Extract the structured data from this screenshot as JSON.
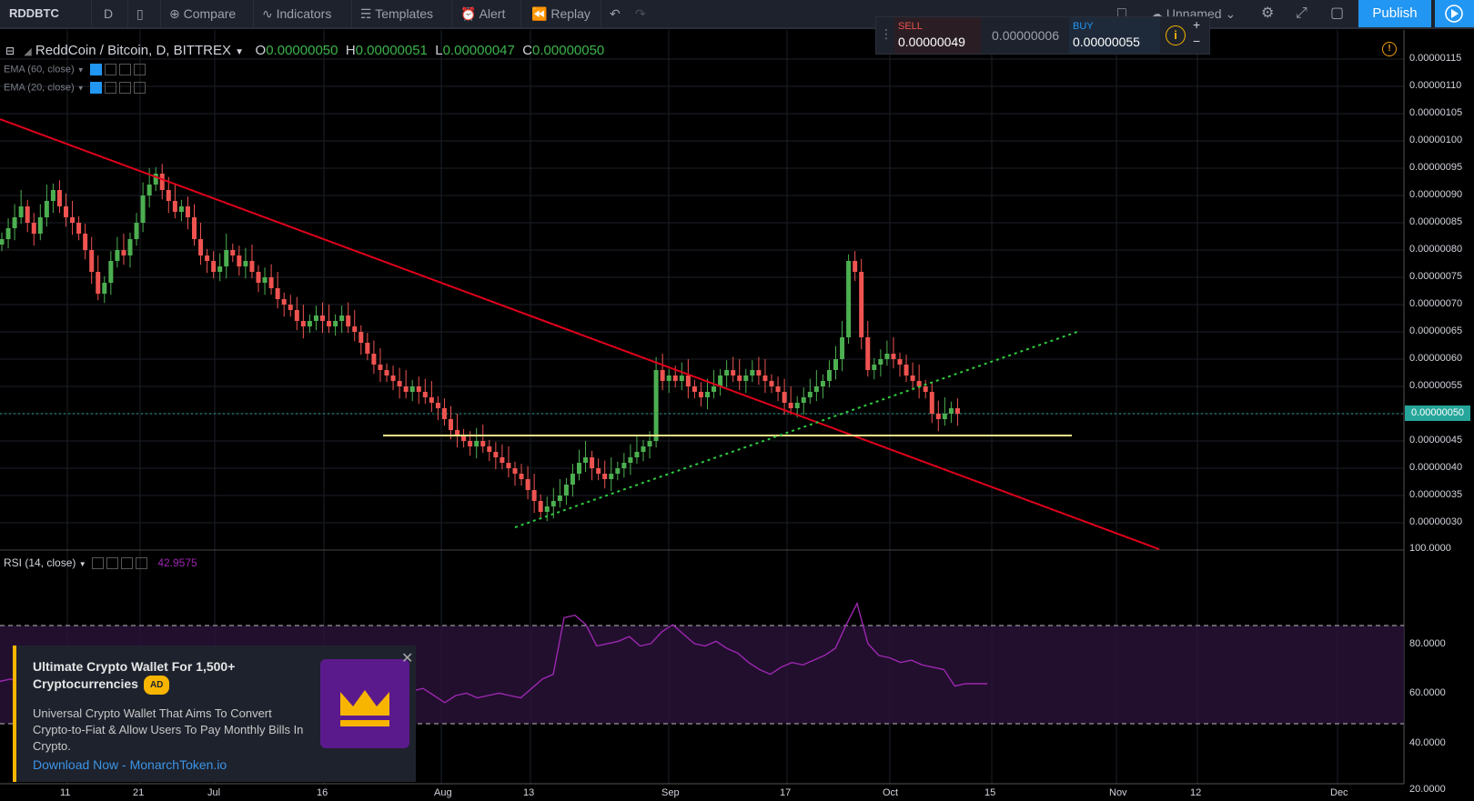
{
  "toolbar": {
    "symbol": "RDDBTC",
    "interval": "D",
    "compare": "Compare",
    "indicators": "Indicators",
    "templates": "Templates",
    "alert": "Alert",
    "replay": "Replay",
    "layout_name": "Unnamed",
    "publish": "Publish"
  },
  "legend": {
    "title": "ReddCoin / Bitcoin, D, BITTREX",
    "o_label": "O",
    "o": "0.00000050",
    "h_label": "H",
    "h": "0.00000051",
    "l_label": "L",
    "l": "0.00000047",
    "c_label": "C",
    "c": "0.00000050",
    "ema60": "EMA (60, close)",
    "ema20": "EMA (20, close)"
  },
  "trade": {
    "sell_label": "SELL",
    "sell_value": "0.00000049",
    "spread": "0.00000006",
    "buy_label": "BUY",
    "buy_value": "0.00000055"
  },
  "price_axis": [
    "0.00000115",
    "0.00000110",
    "0.00000105",
    "0.00000100",
    "0.00000095",
    "0.00000090",
    "0.00000085",
    "0.00000080",
    "0.00000075",
    "0.00000070",
    "0.00000065",
    "0.00000060",
    "0.00000055",
    "0.00000050",
    "0.00000045",
    "0.00000040",
    "0.00000035",
    "0.00000030"
  ],
  "current_price": "0.00000050",
  "rsi": {
    "label": "RSI (14, close)",
    "value": "42.9575",
    "axis": [
      "100.0000",
      "80.0000",
      "60.0000",
      "40.0000",
      "20.0000"
    ]
  },
  "time_axis": [
    "11",
    "21",
    "Jul",
    "16",
    "Aug",
    "13",
    "Sep",
    "17",
    "Oct",
    "15",
    "Nov",
    "12",
    "Dec"
  ],
  "ad": {
    "title": "Ultimate Crypto Wallet For 1,500+ Cryptocurrencies",
    "badge": "AD",
    "body": "Universal Crypto Wallet That Aims To Convert Crypto-to-Fiat & Allow Users To Pay Monthly Bills In Crypto.",
    "link": "Download Now - MonarchToken.io"
  },
  "colors": {
    "up": "#4caf50",
    "down": "#ef5350",
    "trend": "#e0001b",
    "support": "#f5e28a",
    "dotted": "#2ecc40",
    "rsi": "#9c27b0"
  }
}
